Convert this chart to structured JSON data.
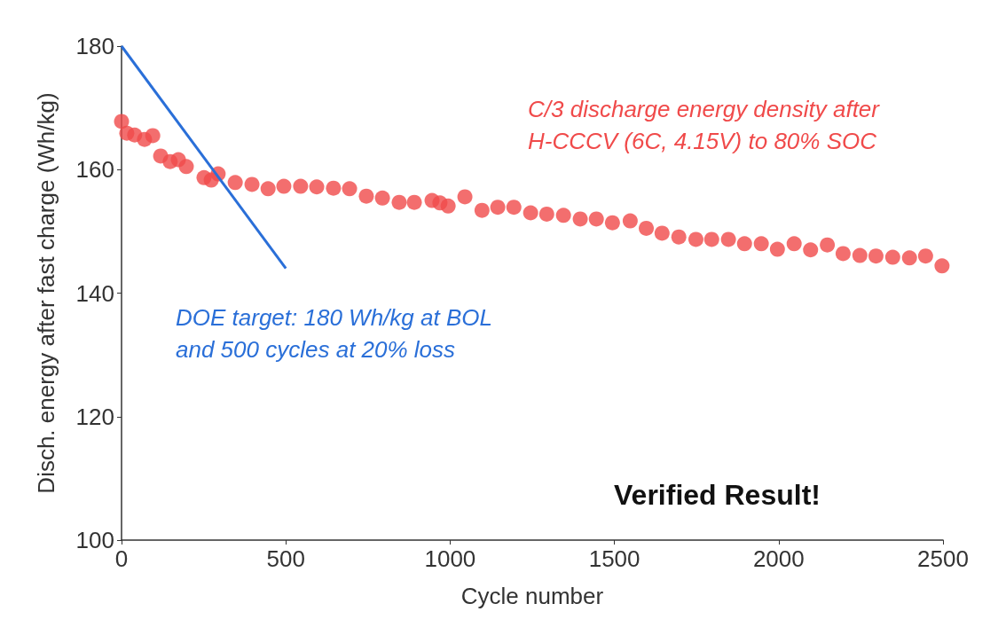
{
  "chart_data": {
    "type": "scatter",
    "xlabel": "Cycle number",
    "ylabel": "Disch. energy after fast charge (Wh/kg)",
    "xlim": [
      0,
      2500
    ],
    "xticks": [
      0,
      500,
      1000,
      1500,
      2000,
      2500
    ],
    "ylim": [
      100,
      180
    ],
    "yticks": [
      100,
      120,
      140,
      160,
      180
    ],
    "grid": false,
    "series": [
      {
        "marker": "circle",
        "color": "#f04a4a",
        "x": [
          0,
          16,
          40,
          70,
          95,
          119,
          148,
          173,
          197,
          251,
          273,
          294,
          346,
          397,
          446,
          494,
          545,
          594,
          645,
          694,
          745,
          794,
          845,
          891,
          945,
          969,
          994,
          1045,
          1097,
          1145,
          1194,
          1245,
          1294,
          1345,
          1396,
          1445,
          1494,
          1548,
          1597,
          1645,
          1696,
          1748,
          1796,
          1847,
          1896,
          1947,
          1996,
          2047,
          2097,
          2148,
          2196,
          2247,
          2296,
          2347,
          2398,
          2447,
          2497
        ],
        "values": [
          167.8,
          165.9,
          165.6,
          164.9,
          165.5,
          162.2,
          161.3,
          161.6,
          160.5,
          158.7,
          158.3,
          159.3,
          157.9,
          157.6,
          156.9,
          157.3,
          157.3,
          157.2,
          157.0,
          156.9,
          155.7,
          155.4,
          154.7,
          154.7,
          155.0,
          154.6,
          154.1,
          155.6,
          153.4,
          153.9,
          153.9,
          153.0,
          152.8,
          152.6,
          152.0,
          152.0,
          151.4,
          151.7,
          150.5,
          149.7,
          149.1,
          148.7,
          148.7,
          148.7,
          148.0,
          148.0,
          147.1,
          148.0,
          147.0,
          147.8,
          146.4,
          146.1,
          146.0,
          145.8,
          145.7,
          146.0,
          144.4
        ]
      },
      {
        "type": "line",
        "marker": "none",
        "line_style": "solid",
        "color": "#2a6fd8",
        "x": [
          0,
          500
        ],
        "values": [
          180,
          144
        ]
      }
    ],
    "annotations": [
      "C/3 discharge energy density after\nH-CCCV (6C, 4.15V) to 80% SOC",
      "DOE target: 180 Wh/kg at BOL\nand 500 cycles at 20% loss",
      "Verified Result!"
    ]
  }
}
